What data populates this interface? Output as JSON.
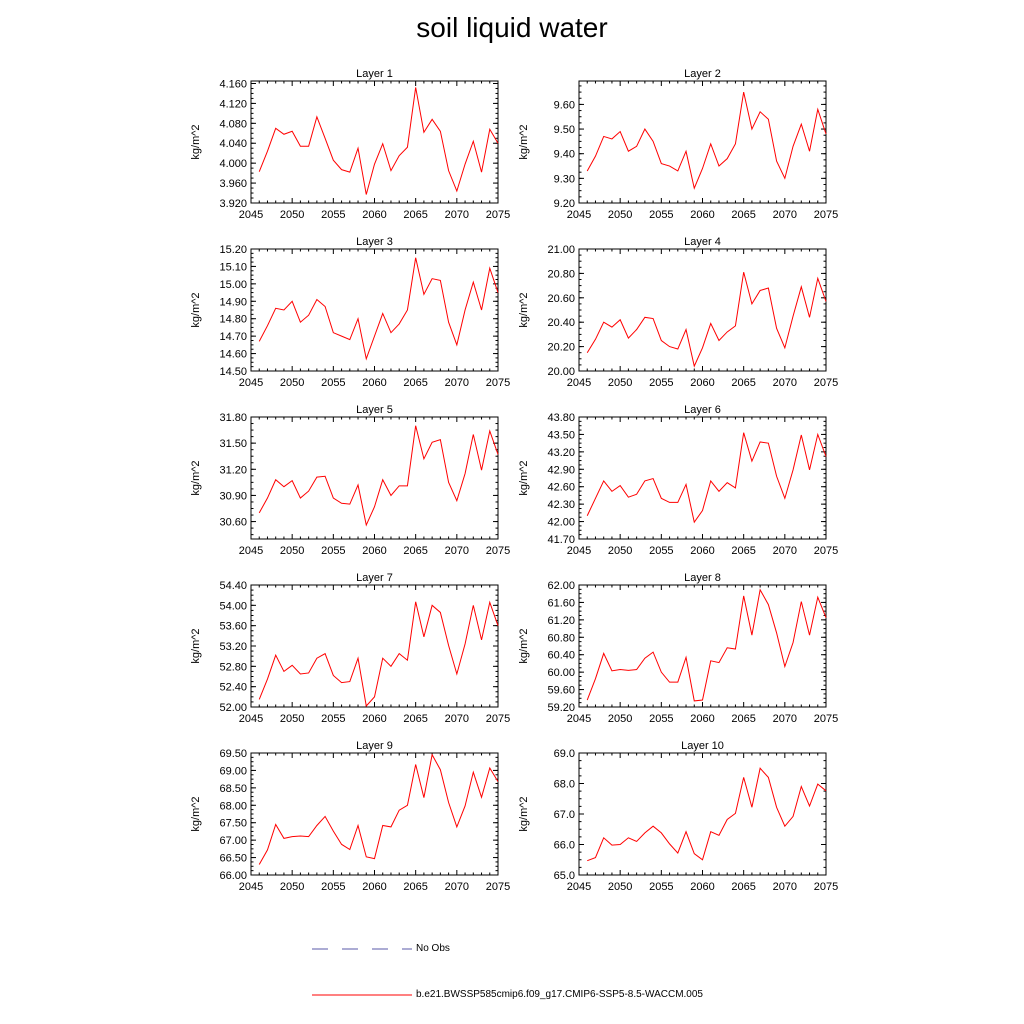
{
  "title": "soil liquid water",
  "legend": {
    "obs_label": "No Obs",
    "obs_color": "#5a5aa8",
    "model_label": "b.e21.BWSSP585cmip6.f09_g17.CMIP6-SSP5-8.5-WACCM.005",
    "model_color": "#ff0000"
  },
  "chart_data": [
    {
      "type": "line",
      "title": "Layer 1",
      "ylabel": "kg/m^2",
      "xlim": [
        2045,
        2075
      ],
      "ylim": [
        3.92,
        4.165
      ],
      "xticks": [
        2045,
        2050,
        2055,
        2060,
        2065,
        2070,
        2075
      ],
      "yticks": [
        "3.920",
        "3.960",
        "4.000",
        "4.040",
        "4.080",
        "4.120",
        "4.160"
      ],
      "yticks_num": [
        3.92,
        3.96,
        4.0,
        4.04,
        4.08,
        4.12,
        4.16
      ],
      "x": [
        2046,
        2047,
        2048,
        2049,
        2050,
        2051,
        2052,
        2053,
        2054,
        2055,
        2056,
        2057,
        2058,
        2059,
        2060,
        2061,
        2062,
        2063,
        2064,
        2065,
        2066,
        2067,
        2068,
        2069,
        2070,
        2071,
        2072,
        2073,
        2074,
        2075
      ],
      "series": [
        {
          "values": [
            3.983,
            4.024,
            4.07,
            4.058,
            4.064,
            4.034,
            4.034,
            4.093,
            4.05,
            4.006,
            3.987,
            3.982,
            4.03,
            3.937,
            3.998,
            4.039,
            3.985,
            4.015,
            4.032,
            4.152,
            4.062,
            4.088,
            4.064,
            3.985,
            3.944,
            3.998,
            4.044,
            3.982,
            4.068,
            4.04
          ]
        }
      ]
    },
    {
      "type": "line",
      "title": "Layer 2",
      "ylabel": "kg/m^2",
      "xlim": [
        2045,
        2075
      ],
      "ylim": [
        9.2,
        9.695
      ],
      "xticks": [
        2045,
        2050,
        2055,
        2060,
        2065,
        2070,
        2075
      ],
      "yticks": [
        "9.20",
        "9.30",
        "9.40",
        "9.50",
        "9.60"
      ],
      "yticks_num": [
        9.2,
        9.3,
        9.4,
        9.5,
        9.6
      ],
      "x": [
        2046,
        2047,
        2048,
        2049,
        2050,
        2051,
        2052,
        2053,
        2054,
        2055,
        2056,
        2057,
        2058,
        2059,
        2060,
        2061,
        2062,
        2063,
        2064,
        2065,
        2066,
        2067,
        2068,
        2069,
        2070,
        2071,
        2072,
        2073,
        2074,
        2075
      ],
      "series": [
        {
          "values": [
            9.33,
            9.39,
            9.47,
            9.46,
            9.49,
            9.41,
            9.43,
            9.5,
            9.45,
            9.36,
            9.35,
            9.33,
            9.41,
            9.26,
            9.34,
            9.44,
            9.35,
            9.38,
            9.44,
            9.65,
            9.5,
            9.57,
            9.54,
            9.37,
            9.3,
            9.43,
            9.52,
            9.41,
            9.58,
            9.48
          ]
        }
      ]
    },
    {
      "type": "line",
      "title": "Layer 3",
      "ylabel": "kg/m^2",
      "xlim": [
        2045,
        2075
      ],
      "ylim": [
        14.5,
        15.2
      ],
      "xticks": [
        2045,
        2050,
        2055,
        2060,
        2065,
        2070,
        2075
      ],
      "yticks": [
        "14.50",
        "14.60",
        "14.70",
        "14.80",
        "14.90",
        "15.00",
        "15.10",
        "15.20"
      ],
      "yticks_num": [
        14.5,
        14.6,
        14.7,
        14.8,
        14.9,
        15.0,
        15.1,
        15.2
      ],
      "x": [
        2046,
        2047,
        2048,
        2049,
        2050,
        2051,
        2052,
        2053,
        2054,
        2055,
        2056,
        2057,
        2058,
        2059,
        2060,
        2061,
        2062,
        2063,
        2064,
        2065,
        2066,
        2067,
        2068,
        2069,
        2070,
        2071,
        2072,
        2073,
        2074,
        2075
      ],
      "series": [
        {
          "values": [
            14.67,
            14.76,
            14.86,
            14.85,
            14.9,
            14.78,
            14.82,
            14.91,
            14.87,
            14.72,
            14.7,
            14.68,
            14.8,
            14.57,
            14.7,
            14.83,
            14.72,
            14.77,
            14.85,
            15.15,
            14.94,
            15.03,
            15.02,
            14.78,
            14.65,
            14.85,
            15.01,
            14.85,
            15.09,
            14.95
          ]
        }
      ]
    },
    {
      "type": "line",
      "title": "Layer 4",
      "ylabel": "kg/m^2",
      "xlim": [
        2045,
        2075
      ],
      "ylim": [
        20.0,
        21.0
      ],
      "xticks": [
        2045,
        2050,
        2055,
        2060,
        2065,
        2070,
        2075
      ],
      "yticks": [
        "20.00",
        "20.20",
        "20.40",
        "20.60",
        "20.80",
        "21.00"
      ],
      "yticks_num": [
        20.0,
        20.2,
        20.4,
        20.6,
        20.8,
        21.0
      ],
      "x": [
        2046,
        2047,
        2048,
        2049,
        2050,
        2051,
        2052,
        2053,
        2054,
        2055,
        2056,
        2057,
        2058,
        2059,
        2060,
        2061,
        2062,
        2063,
        2064,
        2065,
        2066,
        2067,
        2068,
        2069,
        2070,
        2071,
        2072,
        2073,
        2074,
        2075
      ],
      "series": [
        {
          "values": [
            20.15,
            20.26,
            20.4,
            20.36,
            20.42,
            20.27,
            20.34,
            20.44,
            20.43,
            20.25,
            20.2,
            20.18,
            20.34,
            20.04,
            20.19,
            20.39,
            20.25,
            20.32,
            20.37,
            20.81,
            20.55,
            20.66,
            20.68,
            20.35,
            20.19,
            20.45,
            20.69,
            20.44,
            20.76,
            20.57
          ]
        }
      ]
    },
    {
      "type": "line",
      "title": "Layer 5",
      "ylabel": "kg/m^2",
      "xlim": [
        2045,
        2075
      ],
      "ylim": [
        30.4,
        31.8
      ],
      "xticks": [
        2045,
        2050,
        2055,
        2060,
        2065,
        2070,
        2075
      ],
      "yticks": [
        "30.60",
        "30.90",
        "31.20",
        "31.50",
        "31.80"
      ],
      "yticks_num": [
        30.6,
        30.9,
        31.2,
        31.5,
        31.8
      ],
      "x": [
        2046,
        2047,
        2048,
        2049,
        2050,
        2051,
        2052,
        2053,
        2054,
        2055,
        2056,
        2057,
        2058,
        2059,
        2060,
        2061,
        2062,
        2063,
        2064,
        2065,
        2066,
        2067,
        2068,
        2069,
        2070,
        2071,
        2072,
        2073,
        2074,
        2075
      ],
      "series": [
        {
          "values": [
            30.7,
            30.87,
            31.08,
            31.0,
            31.07,
            30.87,
            30.95,
            31.11,
            31.12,
            30.87,
            30.81,
            30.8,
            31.02,
            30.56,
            30.77,
            31.08,
            30.9,
            31.01,
            31.01,
            31.7,
            31.32,
            31.51,
            31.54,
            31.05,
            30.84,
            31.15,
            31.6,
            31.19,
            31.64,
            31.37
          ]
        }
      ]
    },
    {
      "type": "line",
      "title": "Layer 6",
      "ylabel": "kg/m^2",
      "xlim": [
        2045,
        2075
      ],
      "ylim": [
        41.7,
        43.8
      ],
      "xticks": [
        2045,
        2050,
        2055,
        2060,
        2065,
        2070,
        2075
      ],
      "yticks": [
        "41.70",
        "42.00",
        "42.30",
        "42.60",
        "42.90",
        "43.20",
        "43.50",
        "43.80"
      ],
      "yticks_num": [
        41.7,
        42.0,
        42.3,
        42.6,
        42.9,
        43.2,
        43.5,
        43.8
      ],
      "x": [
        2046,
        2047,
        2048,
        2049,
        2050,
        2051,
        2052,
        2053,
        2054,
        2055,
        2056,
        2057,
        2058,
        2059,
        2060,
        2061,
        2062,
        2063,
        2064,
        2065,
        2066,
        2067,
        2068,
        2069,
        2070,
        2071,
        2072,
        2073,
        2074,
        2075
      ],
      "series": [
        {
          "values": [
            42.1,
            42.4,
            42.7,
            42.52,
            42.62,
            42.42,
            42.47,
            42.7,
            42.74,
            42.4,
            42.33,
            42.33,
            42.64,
            41.99,
            42.19,
            42.7,
            42.52,
            42.67,
            42.58,
            43.53,
            43.04,
            43.37,
            43.35,
            42.78,
            42.4,
            42.89,
            43.49,
            42.89,
            43.5,
            43.12
          ]
        }
      ]
    },
    {
      "type": "line",
      "title": "Layer 7",
      "ylabel": "kg/m^2",
      "xlim": [
        2045,
        2075
      ],
      "ylim": [
        52.0,
        54.4
      ],
      "xticks": [
        2045,
        2050,
        2055,
        2060,
        2065,
        2070,
        2075
      ],
      "yticks": [
        "52.00",
        "52.40",
        "52.80",
        "53.20",
        "53.60",
        "54.00",
        "54.40"
      ],
      "yticks_num": [
        52.0,
        52.4,
        52.8,
        53.2,
        53.6,
        54.0,
        54.4
      ],
      "x": [
        2046,
        2047,
        2048,
        2049,
        2050,
        2051,
        2052,
        2053,
        2054,
        2055,
        2056,
        2057,
        2058,
        2059,
        2060,
        2061,
        2062,
        2063,
        2064,
        2065,
        2066,
        2067,
        2068,
        2069,
        2070,
        2071,
        2072,
        2073,
        2074,
        2075
      ],
      "series": [
        {
          "values": [
            52.15,
            52.55,
            53.02,
            52.7,
            52.82,
            52.65,
            52.67,
            52.96,
            53.05,
            52.62,
            52.48,
            52.5,
            52.96,
            52.02,
            52.2,
            52.96,
            52.8,
            53.05,
            52.92,
            54.07,
            53.38,
            54.0,
            53.86,
            53.21,
            52.65,
            53.24,
            54.0,
            53.32,
            54.06,
            53.6
          ]
        }
      ]
    },
    {
      "type": "line",
      "title": "Layer 8",
      "ylabel": "kg/m^2",
      "xlim": [
        2045,
        2075
      ],
      "ylim": [
        59.2,
        62.0
      ],
      "xticks": [
        2045,
        2050,
        2055,
        2060,
        2065,
        2070,
        2075
      ],
      "yticks": [
        "59.20",
        "59.60",
        "60.00",
        "60.40",
        "60.80",
        "61.20",
        "61.60",
        "62.00"
      ],
      "yticks_num": [
        59.2,
        59.6,
        60.0,
        60.4,
        60.8,
        61.2,
        61.6,
        62.0
      ],
      "x": [
        2046,
        2047,
        2048,
        2049,
        2050,
        2051,
        2052,
        2053,
        2054,
        2055,
        2056,
        2057,
        2058,
        2059,
        2060,
        2061,
        2062,
        2063,
        2064,
        2065,
        2066,
        2067,
        2068,
        2069,
        2070,
        2071,
        2072,
        2073,
        2074,
        2075
      ],
      "series": [
        {
          "values": [
            59.36,
            59.85,
            60.43,
            60.03,
            60.06,
            60.04,
            60.06,
            60.32,
            60.46,
            60.0,
            59.77,
            59.77,
            60.34,
            59.34,
            59.36,
            60.26,
            60.22,
            60.56,
            60.53,
            61.75,
            60.85,
            61.89,
            61.55,
            60.9,
            60.13,
            60.68,
            61.62,
            60.85,
            61.72,
            61.25
          ]
        }
      ]
    },
    {
      "type": "line",
      "title": "Layer 9",
      "ylabel": "kg/m^2",
      "xlim": [
        2045,
        2075
      ],
      "ylim": [
        66.0,
        69.5
      ],
      "xticks": [
        2045,
        2050,
        2055,
        2060,
        2065,
        2070,
        2075
      ],
      "yticks": [
        "66.00",
        "66.50",
        "67.00",
        "67.50",
        "68.00",
        "68.50",
        "69.00",
        "69.50"
      ],
      "yticks_num": [
        66.0,
        66.5,
        67.0,
        67.5,
        68.0,
        68.5,
        69.0,
        69.5
      ],
      "x": [
        2046,
        2047,
        2048,
        2049,
        2050,
        2051,
        2052,
        2053,
        2054,
        2055,
        2056,
        2057,
        2058,
        2059,
        2060,
        2061,
        2062,
        2063,
        2064,
        2065,
        2066,
        2067,
        2068,
        2069,
        2070,
        2071,
        2072,
        2073,
        2074,
        2075
      ],
      "series": [
        {
          "values": [
            66.3,
            66.72,
            67.45,
            67.05,
            67.1,
            67.12,
            67.1,
            67.42,
            67.68,
            67.26,
            66.88,
            66.73,
            67.42,
            66.52,
            66.47,
            67.42,
            67.38,
            67.86,
            68.0,
            69.17,
            68.22,
            69.45,
            69.02,
            68.08,
            67.38,
            67.98,
            68.95,
            68.23,
            69.07,
            68.68
          ]
        }
      ]
    },
    {
      "type": "line",
      "title": "Layer 10",
      "ylabel": "kg/m^2",
      "xlim": [
        2045,
        2075
      ],
      "ylim": [
        65.0,
        69.0
      ],
      "xticks": [
        2045,
        2050,
        2055,
        2060,
        2065,
        2070,
        2075
      ],
      "yticks": [
        "65.0",
        "66.0",
        "67.0",
        "68.0",
        "69.0"
      ],
      "yticks_num": [
        65.0,
        66.0,
        67.0,
        68.0,
        69.0
      ],
      "x": [
        2046,
        2047,
        2048,
        2049,
        2050,
        2051,
        2052,
        2053,
        2054,
        2055,
        2056,
        2057,
        2058,
        2059,
        2060,
        2061,
        2062,
        2063,
        2064,
        2065,
        2066,
        2067,
        2068,
        2069,
        2070,
        2071,
        2072,
        2073,
        2074,
        2075
      ],
      "series": [
        {
          "values": [
            65.47,
            65.57,
            66.22,
            65.98,
            66.0,
            66.22,
            66.1,
            66.38,
            66.6,
            66.38,
            66.02,
            65.72,
            66.42,
            65.7,
            65.5,
            66.42,
            66.3,
            66.82,
            67.02,
            68.2,
            67.22,
            68.5,
            68.2,
            67.22,
            66.6,
            66.92,
            67.9,
            67.26,
            67.98,
            67.76
          ]
        }
      ]
    }
  ]
}
